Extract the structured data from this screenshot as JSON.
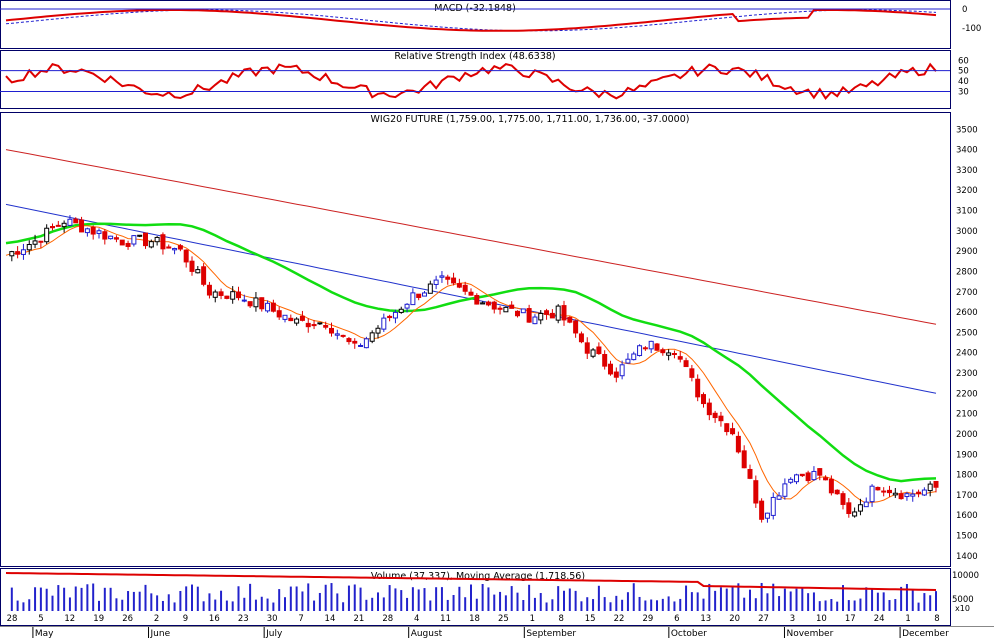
{
  "panels": {
    "macd": {
      "title": "MACD (-32.1848)",
      "yticks": [
        0,
        -100
      ]
    },
    "rsi": {
      "title": "Relative Strength Index (48.6338)",
      "yticks": [
        60,
        50,
        40,
        30
      ],
      "levels": [
        50,
        30
      ]
    },
    "price": {
      "title": "WIG20 FUTURE (1,759.00, 1,775.00, 1,711.00, 1,736.00, -37.0000)",
      "yticks": [
        3500,
        3400,
        3300,
        3200,
        3100,
        3000,
        2900,
        2800,
        2700,
        2600,
        2500,
        2400,
        2300,
        2200,
        2100,
        2000,
        1900,
        1800,
        1700,
        1600,
        1500,
        1400
      ]
    },
    "volume": {
      "title": "Volume (37,337), Moving Average (1,718.56)",
      "yticks": [
        "10000",
        "5000"
      ],
      "scale_note": "x10"
    }
  },
  "x_axis": {
    "day_labels": [
      "28",
      "5",
      "12",
      "19",
      "26",
      "2",
      "9",
      "16",
      "23",
      "30",
      "7",
      "14",
      "21",
      "28",
      "4",
      "11",
      "18",
      "25",
      "1",
      "8",
      "15",
      "22",
      "29",
      "6",
      "13",
      "20",
      "27",
      "3",
      "10",
      "17",
      "24",
      "1",
      "8"
    ],
    "month_labels": [
      "May",
      "June",
      "July",
      "August",
      "September",
      "October",
      "November",
      "December"
    ]
  },
  "colors": {
    "up": "#1f1fd0",
    "down": "#dd0000",
    "neutral": "#000000",
    "ma_fast": "#ff6600",
    "ma_mid": "#11dd11",
    "ma_slow": "#2233cc",
    "ma_long": "#cc2222",
    "volume": "#2222cc",
    "grid": "#000066"
  },
  "chart_data": {
    "type": "candlestick",
    "title": "WIG20 FUTURE",
    "y_range": [
      1350,
      3580
    ],
    "last": {
      "open": 1759.0,
      "high": 1775.0,
      "low": 1711.0,
      "close": 1736.0,
      "change": -37.0
    },
    "weekly_close": [
      2880,
      2950,
      3050,
      3000,
      2950,
      2950,
      2900,
      2700,
      2680,
      2620,
      2550,
      2550,
      2420,
      2550,
      2680,
      2750,
      2680,
      2620,
      2580,
      2600,
      2420,
      2300,
      2440,
      2420,
      2150,
      2010,
      1600,
      1800,
      1800,
      1600,
      1750,
      1700,
      1736
    ],
    "moving_averages": [
      {
        "color": "ma_long",
        "values": [
          3400,
          2540
        ]
      },
      {
        "color": "ma_slow",
        "values": [
          3130,
          2200
        ]
      },
      {
        "color": "ma_mid",
        "values": [
          2980,
          1860
        ]
      }
    ],
    "rsi": {
      "value": 48.6338
    },
    "macd": {
      "value": -32.1848
    },
    "volume": {
      "value": 37337,
      "moving_average": 1718.56
    }
  }
}
